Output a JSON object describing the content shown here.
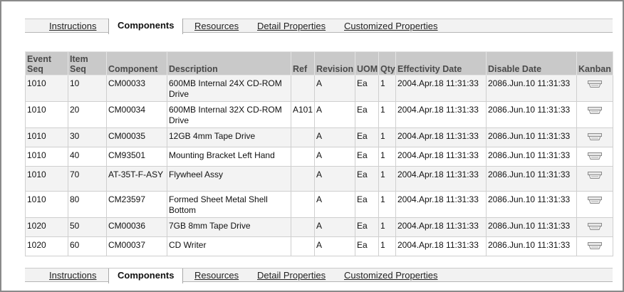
{
  "tabs": [
    {
      "label": "Instructions",
      "active": false
    },
    {
      "label": "Components",
      "active": true
    },
    {
      "label": "Resources",
      "active": false
    },
    {
      "label": "Detail Properties",
      "active": false
    },
    {
      "label": "Customized Properties",
      "active": false
    }
  ],
  "table": {
    "headers": {
      "event_seq": "Event Seq",
      "item_seq": "Item Seq",
      "component": "Component",
      "description": "Description",
      "ref": "Ref",
      "revision": "Revision",
      "uom": "UOM",
      "qty": "Qty",
      "effectivity_date": "Effectivity Date",
      "disable_date": "Disable Date",
      "kanban": "Kanban"
    },
    "rows": [
      {
        "event_seq": "1010",
        "item_seq": "10",
        "component": "CM00033",
        "description": "600MB Internal 24X CD-ROM Drive",
        "ref": "",
        "revision": "A",
        "uom": "Ea",
        "qty": "1",
        "effectivity_date": "2004.Apr.18 11:31:33",
        "disable_date": "2086.Jun.10 11:31:33",
        "kanban_icon": "kanban-icon"
      },
      {
        "event_seq": "1010",
        "item_seq": "20",
        "component": "CM00034",
        "description": "600MB Internal 32X CD-ROM Drive",
        "ref": "A101",
        "revision": "A",
        "uom": "Ea",
        "qty": "1",
        "effectivity_date": "2004.Apr.18 11:31:33",
        "disable_date": "2086.Jun.10 11:31:33",
        "kanban_icon": "kanban-icon"
      },
      {
        "event_seq": "1010",
        "item_seq": "30",
        "component": "CM00035",
        "description": "12GB 4mm Tape Drive",
        "ref": "",
        "revision": "A",
        "uom": "Ea",
        "qty": "1",
        "effectivity_date": "2004.Apr.18 11:31:33",
        "disable_date": "2086.Jun.10 11:31:33",
        "kanban_icon": "kanban-icon"
      },
      {
        "event_seq": "1010",
        "item_seq": "40",
        "component": "CM93501",
        "description": "Mounting Bracket Left Hand",
        "ref": "",
        "revision": "A",
        "uom": "Ea",
        "qty": "1",
        "effectivity_date": "2004.Apr.18 11:31:33",
        "disable_date": "2086.Jun.10 11:31:33",
        "kanban_icon": "kanban-icon"
      },
      {
        "event_seq": "1010",
        "item_seq": "70",
        "component": "AT-35T-F-ASY",
        "description": "Flywheel Assy",
        "ref": "",
        "revision": "A",
        "uom": "Ea",
        "qty": "1",
        "effectivity_date": "2004.Apr.18 11:31:33",
        "disable_date": "2086.Jun.10 11:31:33",
        "kanban_icon": "kanban-icon"
      },
      {
        "event_seq": "1010",
        "item_seq": "80",
        "component": "CM23597",
        "description": "Formed Sheet Metal Shell Bottom",
        "ref": "",
        "revision": "A",
        "uom": "Ea",
        "qty": "1",
        "effectivity_date": "2004.Apr.18 11:31:33",
        "disable_date": "2086.Jun.10 11:31:33",
        "kanban_icon": "kanban-icon"
      },
      {
        "event_seq": "1020",
        "item_seq": "50",
        "component": "CM00036",
        "description": "7GB 8mm Tape Drive",
        "ref": "",
        "revision": "A",
        "uom": "Ea",
        "qty": "1",
        "effectivity_date": "2004.Apr.18 11:31:33",
        "disable_date": "2086.Jun.10 11:31:33",
        "kanban_icon": "kanban-icon"
      },
      {
        "event_seq": "1020",
        "item_seq": "60",
        "component": "CM00037",
        "description": "CD Writer",
        "ref": "",
        "revision": "A",
        "uom": "Ea",
        "qty": "1",
        "effectivity_date": "2004.Apr.18 11:31:33",
        "disable_date": "2086.Jun.10 11:31:33",
        "kanban_icon": "kanban-icon"
      }
    ]
  }
}
